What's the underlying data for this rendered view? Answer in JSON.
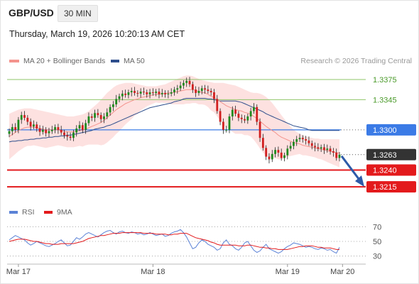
{
  "header": {
    "pair": "GBP/USD",
    "interval": "30 MIN"
  },
  "timestamp": "Thursday, March 19, 2026 10:20:13 AM CET",
  "credit": "Research © 2026 Trading Central",
  "legend_price": [
    {
      "label": "MA 20 + Bollinger Bands",
      "color": "#f4938d"
    },
    {
      "label": "MA 50",
      "color": "#2d4e8c"
    }
  ],
  "legend_rsi": [
    {
      "label": "RSI",
      "color": "#5b82d6"
    },
    {
      "label": "9MA",
      "color": "#e31a1c"
    }
  ],
  "colors": {
    "resistance": "#8fc46a",
    "pivot": "#3b7be6",
    "support": "#e31a1c",
    "current": "#333333",
    "up": "#1e8a1e",
    "down": "#d11f1f"
  },
  "chart_data": {
    "type": "line",
    "ylim": [
      1.3195,
      1.3392
    ],
    "rsi_ylim": [
      21,
      79
    ],
    "x_ticks": [
      {
        "label": "Mar 17",
        "index": 3
      },
      {
        "label": "Mar 18",
        "index": 47
      },
      {
        "label": "Mar 19",
        "index": 91
      },
      {
        "label": "Mar 20",
        "index": 109
      }
    ],
    "levels": [
      {
        "value": 1.3375,
        "label": "1.3375",
        "kind": "resistance"
      },
      {
        "value": 1.3345,
        "label": "1.3345",
        "kind": "resistance"
      },
      {
        "value": 1.33,
        "label": "1.3300",
        "kind": "pivot"
      },
      {
        "value": 1.3263,
        "label": "1.3263",
        "kind": "current"
      },
      {
        "value": 1.324,
        "label": "1.3240",
        "kind": "support"
      },
      {
        "value": 1.3215,
        "label": "1.3215",
        "kind": "support"
      }
    ],
    "rsi_levels": [
      {
        "value": 70,
        "label": "70"
      },
      {
        "value": 50,
        "label": "50"
      },
      {
        "value": 30,
        "label": "30"
      }
    ],
    "close": [
      1.3298,
      1.3304,
      1.33,
      1.3315,
      1.3322,
      1.3318,
      1.3312,
      1.3305,
      1.3308,
      1.3302,
      1.3297,
      1.33,
      1.3295,
      1.3298,
      1.33,
      1.3304,
      1.33,
      1.3296,
      1.3292,
      1.329,
      1.3288,
      1.3296,
      1.3302,
      1.3307,
      1.33,
      1.331,
      1.332,
      1.3318,
      1.3325,
      1.3322,
      1.3316,
      1.332,
      1.3326,
      1.3334,
      1.3338,
      1.3346,
      1.335,
      1.3354,
      1.3352,
      1.3356,
      1.3358,
      1.3355,
      1.3354,
      1.3357,
      1.3356,
      1.3353,
      1.3356,
      1.3355,
      1.3357,
      1.3353,
      1.3355,
      1.3353,
      1.3354,
      1.3356,
      1.336,
      1.3362,
      1.3366,
      1.337,
      1.3373,
      1.3368,
      1.336,
      1.3355,
      1.3358,
      1.3362,
      1.336,
      1.3358,
      1.3356,
      1.3346,
      1.3328,
      1.3312,
      1.33,
      1.33,
      1.332,
      1.333,
      1.3324,
      1.3318,
      1.3316,
      1.3314,
      1.332,
      1.3328,
      1.3334,
      1.3312,
      1.3288,
      1.3273,
      1.326,
      1.3256,
      1.3264,
      1.327,
      1.3266,
      1.3258,
      1.3262,
      1.3272,
      1.3276,
      1.3282,
      1.3286,
      1.3288,
      1.3286,
      1.3284,
      1.328,
      1.3276,
      1.3274,
      1.3272,
      1.3274,
      1.327,
      1.3272,
      1.3268,
      1.3266,
      1.3258,
      1.3263
    ],
    "ma20": [
      1.329,
      1.3293,
      1.3296,
      1.3299,
      1.3301,
      1.3303,
      1.3304,
      1.3304,
      1.3304,
      1.3303,
      1.3302,
      1.3301,
      1.33,
      1.33,
      1.33,
      1.33,
      1.33,
      1.3299,
      1.3298,
      1.3297,
      1.3297,
      1.3297,
      1.3298,
      1.3299,
      1.3299,
      1.3301,
      1.3303,
      1.3305,
      1.3307,
      1.3309,
      1.3311,
      1.3314,
      1.3318,
      1.3322,
      1.3326,
      1.333,
      1.3333,
      1.3336,
      1.3339,
      1.3341,
      1.3343,
      1.3345,
      1.3346,
      1.3348,
      1.3349,
      1.335,
      1.3351,
      1.3352,
      1.3353,
      1.3353,
      1.3354,
      1.3354,
      1.3355,
      1.3355,
      1.3356,
      1.3357,
      1.3358,
      1.3359,
      1.336,
      1.336,
      1.336,
      1.3359,
      1.3357,
      1.3356,
      1.3355,
      1.3353,
      1.335,
      1.3348,
      1.3345,
      1.3342,
      1.3339,
      1.3336,
      1.3334,
      1.3332,
      1.333,
      1.3329,
      1.3328,
      1.3326,
      1.3325,
      1.3323,
      1.332,
      1.3317,
      1.3313,
      1.3309,
      1.3305,
      1.3302,
      1.3299,
      1.3296,
      1.3292,
      1.3289,
      1.3287,
      1.3285,
      1.3283,
      1.3281,
      1.328,
      1.3279,
      1.3277,
      1.3276,
      1.3275,
      1.3274,
      1.3273,
      1.3272,
      1.3271,
      1.327,
      1.3269,
      1.3268,
      1.3267,
      1.3266,
      1.3265
    ],
    "bb_upper": [
      1.3324,
      1.3326,
      1.3328,
      1.333,
      1.3331,
      1.3332,
      1.3332,
      1.3332,
      1.3331,
      1.333,
      1.3329,
      1.3328,
      1.3327,
      1.3326,
      1.3325,
      1.3324,
      1.3323,
      1.3322,
      1.3321,
      1.332,
      1.332,
      1.332,
      1.3321,
      1.3322,
      1.3323,
      1.3325,
      1.3328,
      1.3332,
      1.3336,
      1.334,
      1.3345,
      1.335,
      1.3355,
      1.3359,
      1.3363,
      1.3366,
      1.3368,
      1.3369,
      1.337,
      1.337,
      1.337,
      1.3369,
      1.3368,
      1.3367,
      1.3366,
      1.3365,
      1.3365,
      1.3365,
      1.3365,
      1.3366,
      1.3367,
      1.3368,
      1.337,
      1.3372,
      1.3374,
      1.3376,
      1.3378,
      1.338,
      1.3381,
      1.3381,
      1.338,
      1.3378,
      1.3376,
      1.3374,
      1.3373,
      1.3372,
      1.3371,
      1.337,
      1.337,
      1.337,
      1.337,
      1.3369,
      1.3368,
      1.3367,
      1.3366,
      1.3364,
      1.3362,
      1.336,
      1.3358,
      1.3356,
      1.3355,
      1.3355,
      1.3354,
      1.3352,
      1.3349,
      1.3345,
      1.334,
      1.3334,
      1.3328,
      1.3322,
      1.3316,
      1.331,
      1.3305,
      1.33,
      1.3297,
      1.3294,
      1.3292,
      1.329,
      1.3289,
      1.3288,
      1.3287,
      1.3287,
      1.3286,
      1.3286,
      1.3286,
      1.3286,
      1.3286,
      1.3286,
      1.3286
    ],
    "bb_lower": [
      1.3256,
      1.326,
      1.3264,
      1.3268,
      1.3271,
      1.3274,
      1.3276,
      1.3276,
      1.3277,
      1.3276,
      1.3275,
      1.3274,
      1.3273,
      1.3274,
      1.3275,
      1.3276,
      1.3277,
      1.3276,
      1.3275,
      1.3274,
      1.3274,
      1.3274,
      1.3275,
      1.3276,
      1.3275,
      1.3277,
      1.3278,
      1.3278,
      1.3278,
      1.3278,
      1.3277,
      1.3278,
      1.3281,
      1.3285,
      1.3289,
      1.3294,
      1.3298,
      1.3303,
      1.3308,
      1.3312,
      1.3316,
      1.3321,
      1.3324,
      1.3329,
      1.3332,
      1.3335,
      1.3337,
      1.3339,
      1.3341,
      1.334,
      1.3341,
      1.334,
      1.334,
      1.3338,
      1.3338,
      1.3338,
      1.3338,
      1.3338,
      1.3339,
      1.3339,
      1.334,
      1.334,
      1.3338,
      1.3338,
      1.3337,
      1.3334,
      1.3329,
      1.3326,
      1.332,
      1.3314,
      1.3308,
      1.3303,
      1.33,
      1.3297,
      1.3294,
      1.3294,
      1.3294,
      1.3292,
      1.3292,
      1.329,
      1.3285,
      1.3279,
      1.3272,
      1.3266,
      1.3261,
      1.3259,
      1.3258,
      1.3258,
      1.3256,
      1.3256,
      1.3258,
      1.326,
      1.3261,
      1.3262,
      1.3263,
      1.3264,
      1.3262,
      1.3262,
      1.3261,
      1.326,
      1.3259,
      1.3257,
      1.3256,
      1.3254,
      1.3252,
      1.325,
      1.3248,
      1.3246,
      1.3244
    ],
    "ma50": [
      1.3282,
      1.3283,
      1.3283,
      1.3284,
      1.3284,
      1.3285,
      1.3285,
      1.3286,
      1.3286,
      1.3287,
      1.3287,
      1.3288,
      1.3288,
      1.3289,
      1.3289,
      1.329,
      1.329,
      1.3291,
      1.3291,
      1.3292,
      1.3292,
      1.3293,
      1.3294,
      1.3295,
      1.3296,
      1.3297,
      1.3298,
      1.3299,
      1.3301,
      1.3302,
      1.3303,
      1.3304,
      1.3306,
      1.3307,
      1.3309,
      1.3311,
      1.3313,
      1.3315,
      1.3317,
      1.3319,
      1.3321,
      1.3323,
      1.3325,
      1.3327,
      1.3329,
      1.3331,
      1.3333,
      1.3334,
      1.3335,
      1.3336,
      1.3337,
      1.3338,
      1.3339,
      1.334,
      1.3342,
      1.3343,
      1.3344,
      1.3346,
      1.3347,
      1.3347,
      1.3347,
      1.3347,
      1.3347,
      1.3347,
      1.3347,
      1.3346,
      1.3346,
      1.3345,
      1.3344,
      1.3343,
      1.3343,
      1.3343,
      1.3343,
      1.3343,
      1.3343,
      1.3342,
      1.3341,
      1.3339,
      1.3337,
      1.3335,
      1.3333,
      1.3331,
      1.3329,
      1.3327,
      1.3324,
      1.3322,
      1.332,
      1.3318,
      1.3316,
      1.3314,
      1.3312,
      1.331,
      1.3308,
      1.3306,
      1.3305,
      1.3304,
      1.3303,
      1.3302,
      1.33,
      1.3299,
      1.3299,
      1.3299,
      1.3299,
      1.3299,
      1.3299,
      1.3299,
      1.3299,
      1.3299,
      1.3299
    ],
    "rsi": [
      52,
      55,
      58,
      56,
      54,
      52,
      48,
      45,
      47,
      50,
      48,
      46,
      44,
      43,
      45,
      47,
      50,
      52,
      48,
      44,
      45,
      50,
      55,
      53,
      56,
      60,
      62,
      60,
      58,
      56,
      59,
      62,
      64,
      65,
      62,
      60,
      63,
      64,
      62,
      61,
      63,
      62,
      60,
      61,
      59,
      60,
      62,
      60,
      58,
      59,
      60,
      57,
      58,
      61,
      63,
      64,
      66,
      62,
      56,
      48,
      40,
      42,
      48,
      52,
      50,
      46,
      44,
      42,
      38,
      40,
      48,
      52,
      46,
      44,
      40,
      38,
      42,
      48,
      50,
      44,
      38,
      35,
      37,
      42,
      46,
      40,
      38,
      36,
      34,
      36,
      40,
      43,
      45,
      48,
      47,
      46,
      44,
      42,
      43,
      42,
      40,
      39,
      41,
      40,
      38,
      39,
      36,
      34,
      42
    ],
    "rsi_ma": [
      50,
      51,
      52,
      53,
      53,
      53,
      52,
      51,
      50,
      50,
      49,
      48,
      47,
      47,
      46,
      46,
      46,
      47,
      47,
      47,
      47,
      47,
      48,
      49,
      50,
      52,
      54,
      55,
      56,
      57,
      58,
      58,
      59,
      60,
      61,
      61,
      61,
      62,
      62,
      62,
      62,
      62,
      62,
      62,
      61,
      61,
      61,
      61,
      60,
      60,
      60,
      60,
      59,
      59,
      60,
      60,
      61,
      61,
      61,
      59,
      57,
      55,
      54,
      53,
      52,
      51,
      49,
      48,
      46,
      45,
      45,
      45,
      45,
      45,
      45,
      44,
      44,
      44,
      45,
      45,
      44,
      43,
      42,
      42,
      41,
      41,
      40,
      40,
      39,
      39,
      39,
      39,
      40,
      41,
      42,
      43,
      43,
      44,
      44,
      44,
      43,
      42,
      42,
      41,
      41,
      41,
      40,
      39,
      39
    ]
  }
}
